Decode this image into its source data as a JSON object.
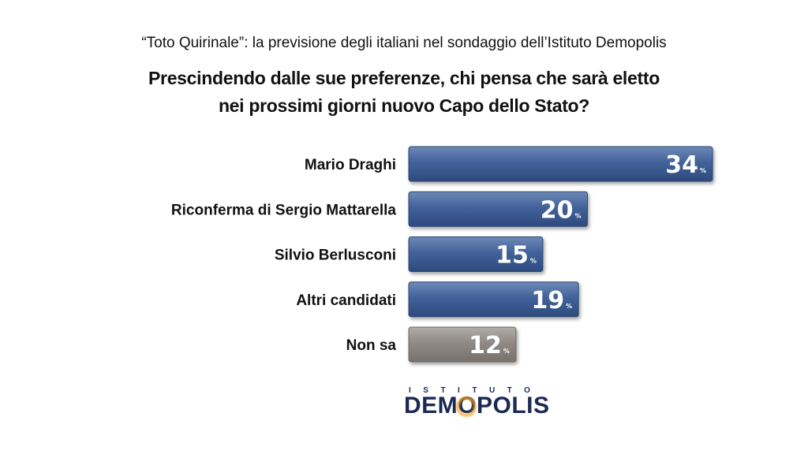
{
  "header": {
    "subtitle": "“Toto Quirinale”: la previsione degli italiani nel sondaggio dell’Istituto Demopolis",
    "question_line1": "Prescindendo dalle sue preferenze, chi pensa che sarà eletto",
    "question_line2": "nei prossimi giorni nuovo Capo dello Stato?"
  },
  "chart_data": {
    "type": "bar",
    "orientation": "horizontal",
    "categories": [
      "Mario Draghi",
      "Riconferma di Sergio Mattarella",
      "Silvio Berlusconi",
      "Altri candidati",
      "Non sa"
    ],
    "values": [
      34,
      20,
      15,
      19,
      12
    ],
    "unit": "%",
    "colors": [
      "#3f5e8f",
      "#3f5e8f",
      "#3f5e8f",
      "#3f5e8f",
      "#8c8783"
    ],
    "data_labels": true,
    "grid": false,
    "legend": "none"
  },
  "logo": {
    "top_text": "ISTITUTO",
    "main_before": "DEM",
    "main_o": "O",
    "main_after": "POLIS",
    "colors": {
      "text": "#1b2a55",
      "glow": "#f7a323"
    }
  }
}
